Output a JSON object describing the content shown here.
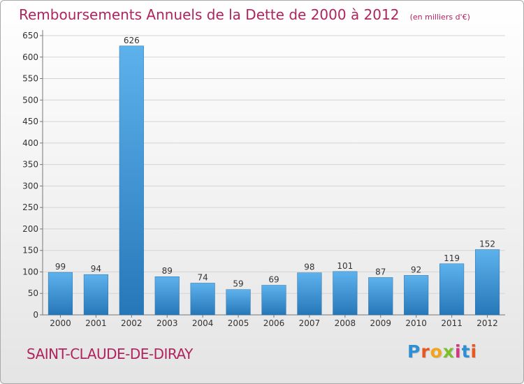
{
  "header": {
    "title": "Remboursements Annuels de la Dette de 2000 à 2012",
    "unit": "(en milliers d'€)"
  },
  "footer": {
    "commune": "SAINT-CLAUDE-DE-DIRAY",
    "logo": "Proxiti"
  },
  "colors": {
    "title": "#b0245e",
    "bar_light": "#5db2ec",
    "bar_dark": "#2677b8",
    "grid": "#d4d4d4"
  },
  "chart_data": {
    "type": "bar",
    "title": "Remboursements Annuels de la Dette de 2000 à 2012",
    "categories": [
      "2000",
      "2001",
      "2002",
      "2003",
      "2004",
      "2005",
      "2006",
      "2007",
      "2008",
      "2009",
      "2010",
      "2011",
      "2012"
    ],
    "values": [
      99,
      94,
      626,
      89,
      74,
      59,
      69,
      98,
      101,
      87,
      92,
      119,
      152
    ],
    "ylim": [
      0,
      650
    ],
    "yticks": [
      0,
      50,
      100,
      150,
      200,
      250,
      300,
      350,
      400,
      450,
      500,
      550,
      600,
      650
    ],
    "grid": true,
    "data_labels": true
  }
}
